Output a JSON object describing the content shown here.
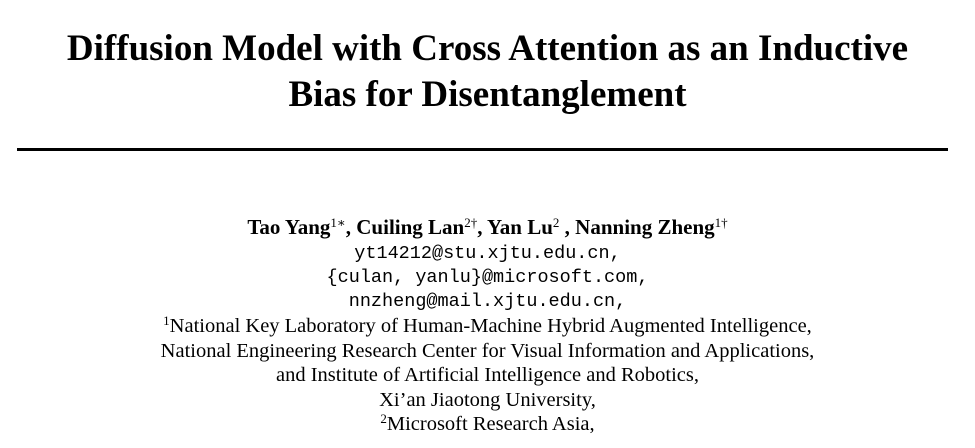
{
  "title": {
    "line1": "Diffusion Model with Cross Attention as an Inductive",
    "line2": "Bias for Disentanglement"
  },
  "authors": [
    {
      "name": "Tao Yang",
      "marks": "1∗",
      "sep": ", "
    },
    {
      "name": "Cuiling Lan",
      "marks": "2†",
      "sep": ", "
    },
    {
      "name": "Yan Lu",
      "marks": "2",
      "sep": " , "
    },
    {
      "name": "Nanning Zheng",
      "marks": "1†",
      "sep": ""
    }
  ],
  "emails": [
    "yt14212@stu.xjtu.edu.cn,",
    "{culan, yanlu}@microsoft.com,",
    "nnzheng@mail.xjtu.edu.cn,"
  ],
  "affiliations": [
    {
      "mark": "1",
      "text": "National Key Laboratory of Human-Machine Hybrid Augmented Intelligence,"
    },
    {
      "mark": "",
      "text": "National Engineering Research Center for Visual Information and Applications,"
    },
    {
      "mark": "",
      "text": "and Institute of Artificial Intelligence and Robotics,"
    },
    {
      "mark": "",
      "text": "Xi’an Jiaotong University,"
    },
    {
      "mark": "2",
      "text": "Microsoft Research Asia,"
    }
  ]
}
